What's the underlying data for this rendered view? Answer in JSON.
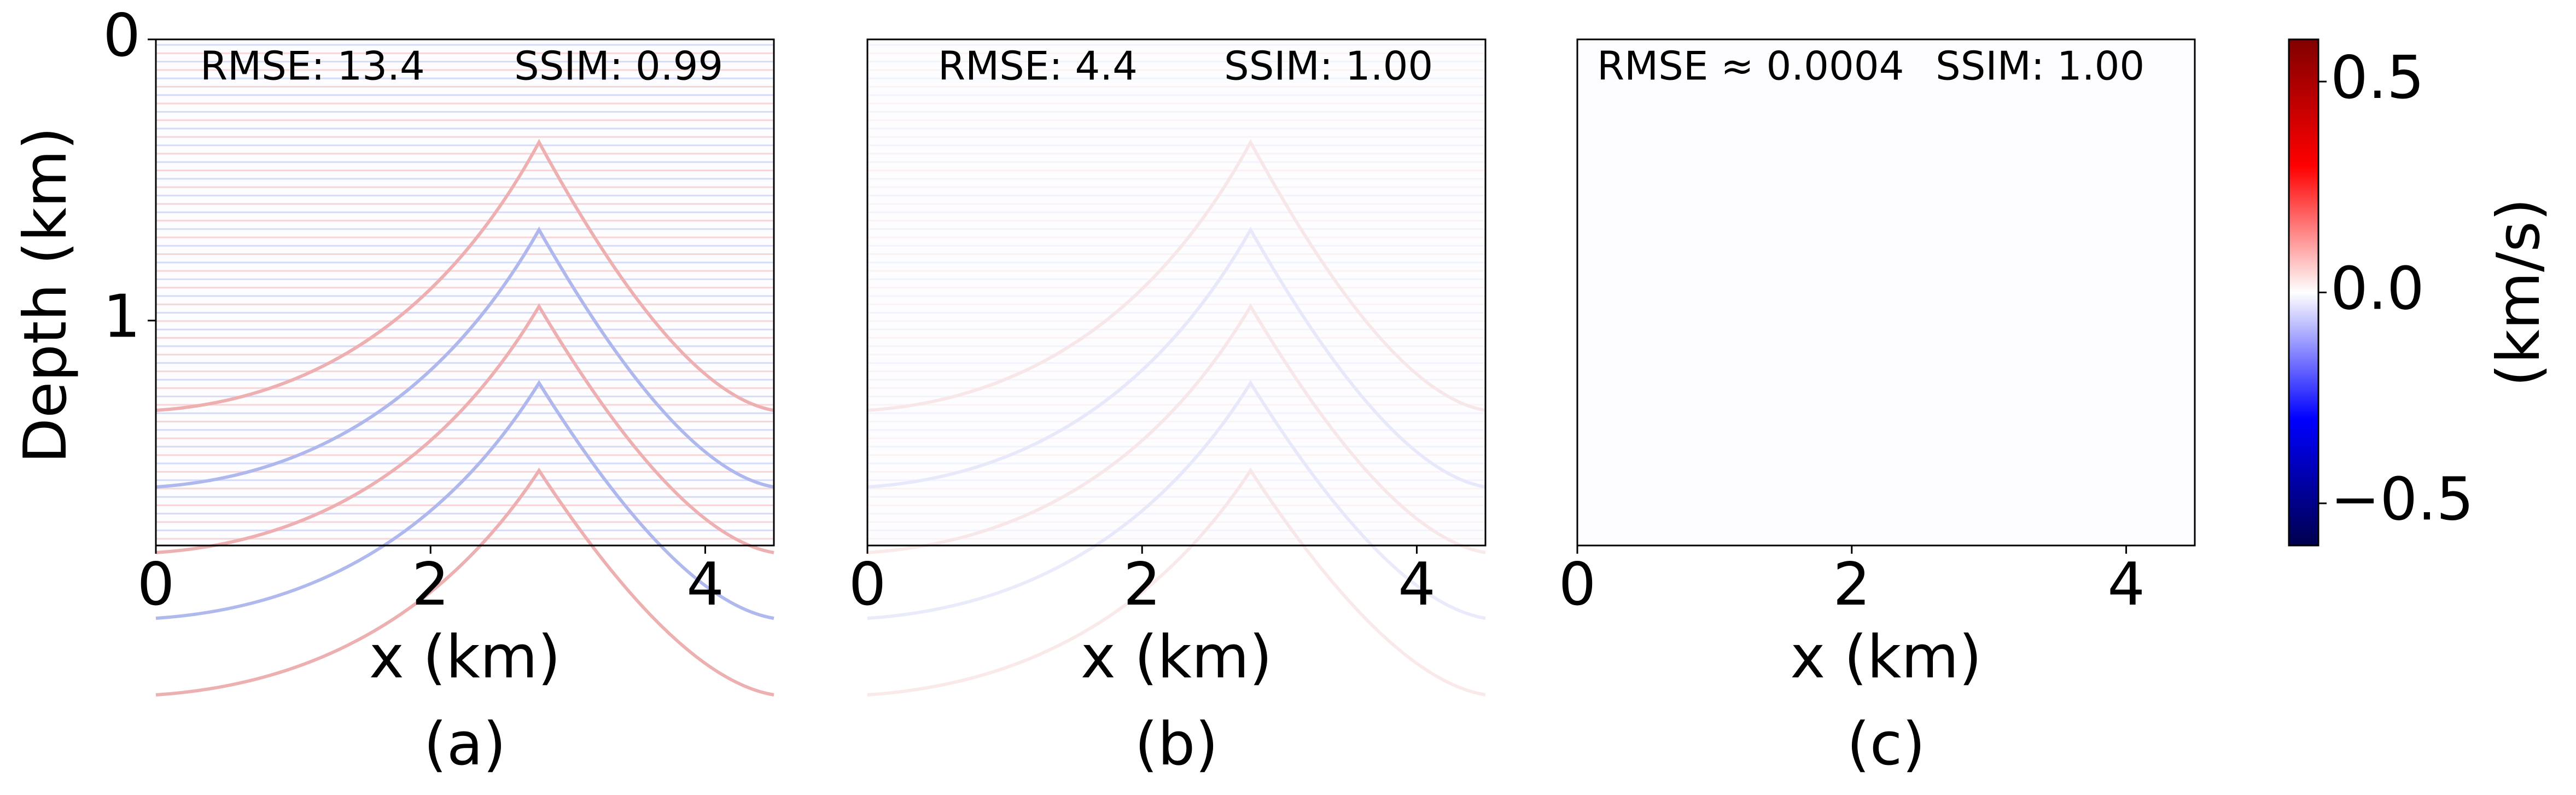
{
  "chart_data": [
    {
      "type": "heatmap",
      "annotations": [
        "RMSE: 13.4",
        "SSIM: 0.99"
      ],
      "xlabel": "x (km)",
      "ylabel": "Depth (km)",
      "caption": "(a)",
      "xlim": [
        0,
        4.5
      ],
      "xticks": [
        0,
        2,
        4
      ],
      "ylim": [
        1.8,
        0
      ],
      "yticks": [
        0,
        1
      ],
      "colormap": "seismic"
    },
    {
      "type": "heatmap",
      "annotations": [
        "RMSE: 4.4",
        "SSIM: 1.00"
      ],
      "xlabel": "x (km)",
      "caption": "(b)",
      "xlim": [
        0,
        4.5
      ],
      "xticks": [
        0,
        2,
        4
      ],
      "ylim": [
        1.8,
        0
      ],
      "colormap": "seismic"
    },
    {
      "type": "heatmap",
      "annotations": [
        "RMSE ≈ 0.0004",
        "SSIM: 1.00"
      ],
      "xlabel": "x (km)",
      "caption": "(c)",
      "xlim": [
        0,
        4.5
      ],
      "xticks": [
        0,
        2,
        4
      ],
      "ylim": [
        1.8,
        0
      ],
      "colormap": "seismic"
    },
    {
      "type": "colorbar",
      "label": "(km/s)",
      "ylim": [
        -0.6,
        0.6
      ],
      "yticks": [
        {
          "value": -0.5,
          "label": "−0.5"
        },
        {
          "value": 0,
          "label": "0.0"
        },
        {
          "value": 0.5,
          "label": "0.5"
        }
      ],
      "colormap": "seismic"
    }
  ]
}
